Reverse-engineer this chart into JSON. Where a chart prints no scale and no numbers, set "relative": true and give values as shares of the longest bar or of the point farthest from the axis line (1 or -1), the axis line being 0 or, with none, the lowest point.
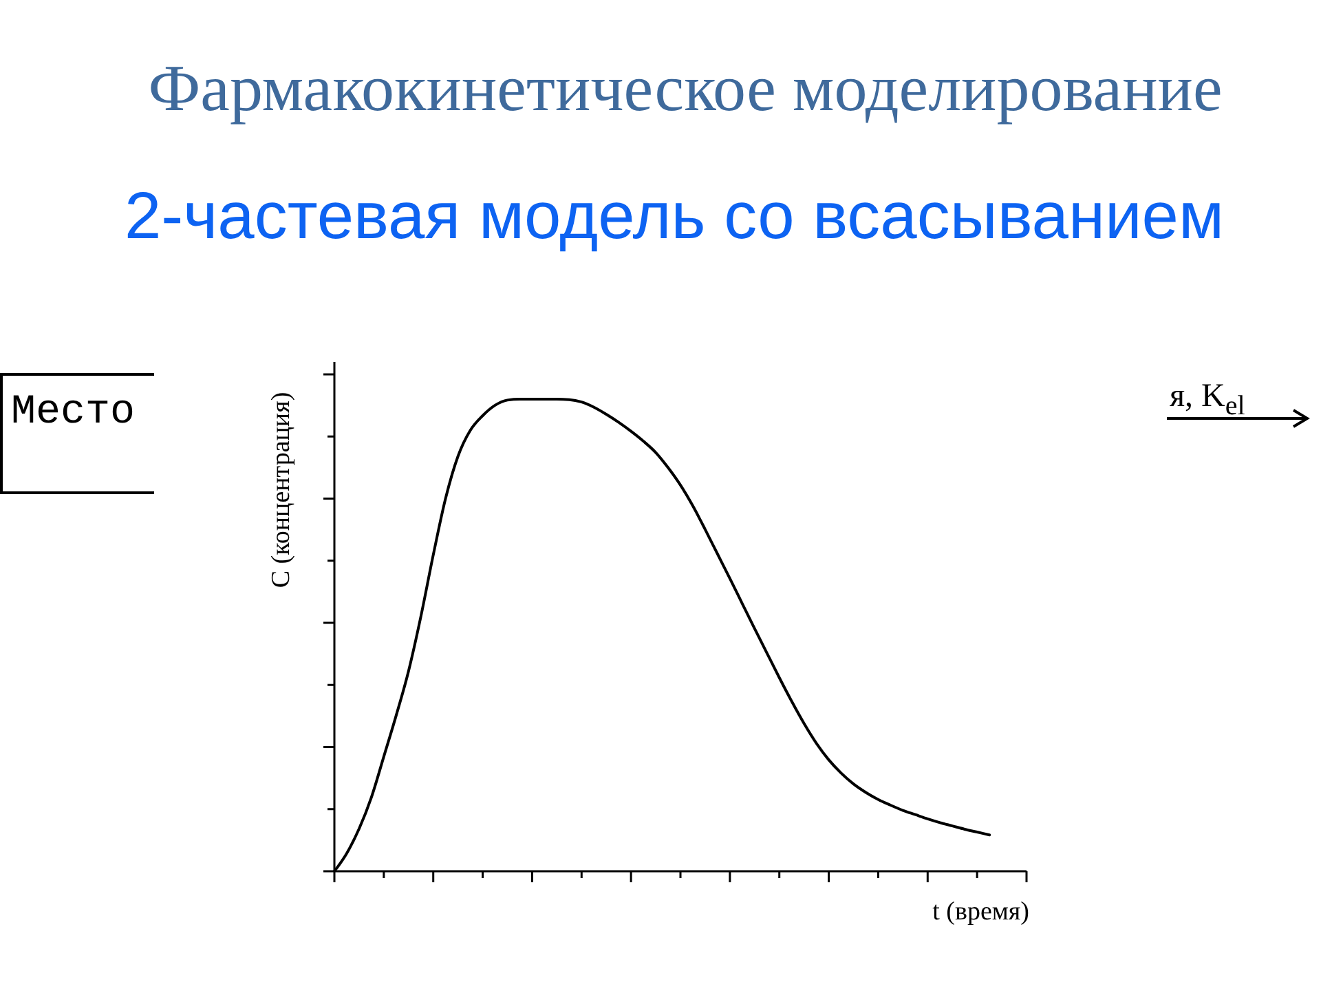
{
  "chart_data": {
    "type": "line",
    "title": "Фармакокинетическое моделирование",
    "subtitle": "2-частевая модель со всасыванием",
    "xlabel": "t (время)",
    "ylabel": "C (концентрация)",
    "annotations": [
      "Место",
      "я, K$_{el}$"
    ],
    "categories": [
      null,
      null,
      null,
      null,
      null,
      null,
      null,
      null,
      null,
      null,
      null,
      null,
      null,
      null,
      null,
      null,
      null,
      null,
      null,
      null,
      null,
      null,
      null,
      null,
      null,
      null,
      null,
      null,
      null,
      null,
      null,
      null,
      null,
      null,
      null,
      null,
      null,
      null,
      null,
      null,
      null,
      null,
      null,
      null,
      null,
      null,
      null,
      null,
      null,
      null,
      null,
      null,
      null,
      null,
      null,
      null,
      null
    ],
    "values": [
      0,
      0.038,
      0.09,
      0.157,
      0.243,
      0.33,
      0.424,
      0.54,
      0.67,
      0.79,
      0.879,
      0.934,
      0.965,
      0.987,
      0.998,
      1,
      1,
      1,
      1,
      0.999,
      0.994,
      0.983,
      0.968,
      0.951,
      0.932,
      0.911,
      0.887,
      0.855,
      0.818,
      0.774,
      0.724,
      0.672,
      0.62,
      0.567,
      0.514,
      0.462,
      0.41,
      0.36,
      0.313,
      0.271,
      0.236,
      0.208,
      0.185,
      0.167,
      0.152,
      0.14,
      0.129,
      0.12,
      0.111,
      0.103,
      0.096,
      0.089,
      0.083,
      0.077,
      null,
      null,
      null
    ],
    "color": "#000000",
    "relative": true
  }
}
